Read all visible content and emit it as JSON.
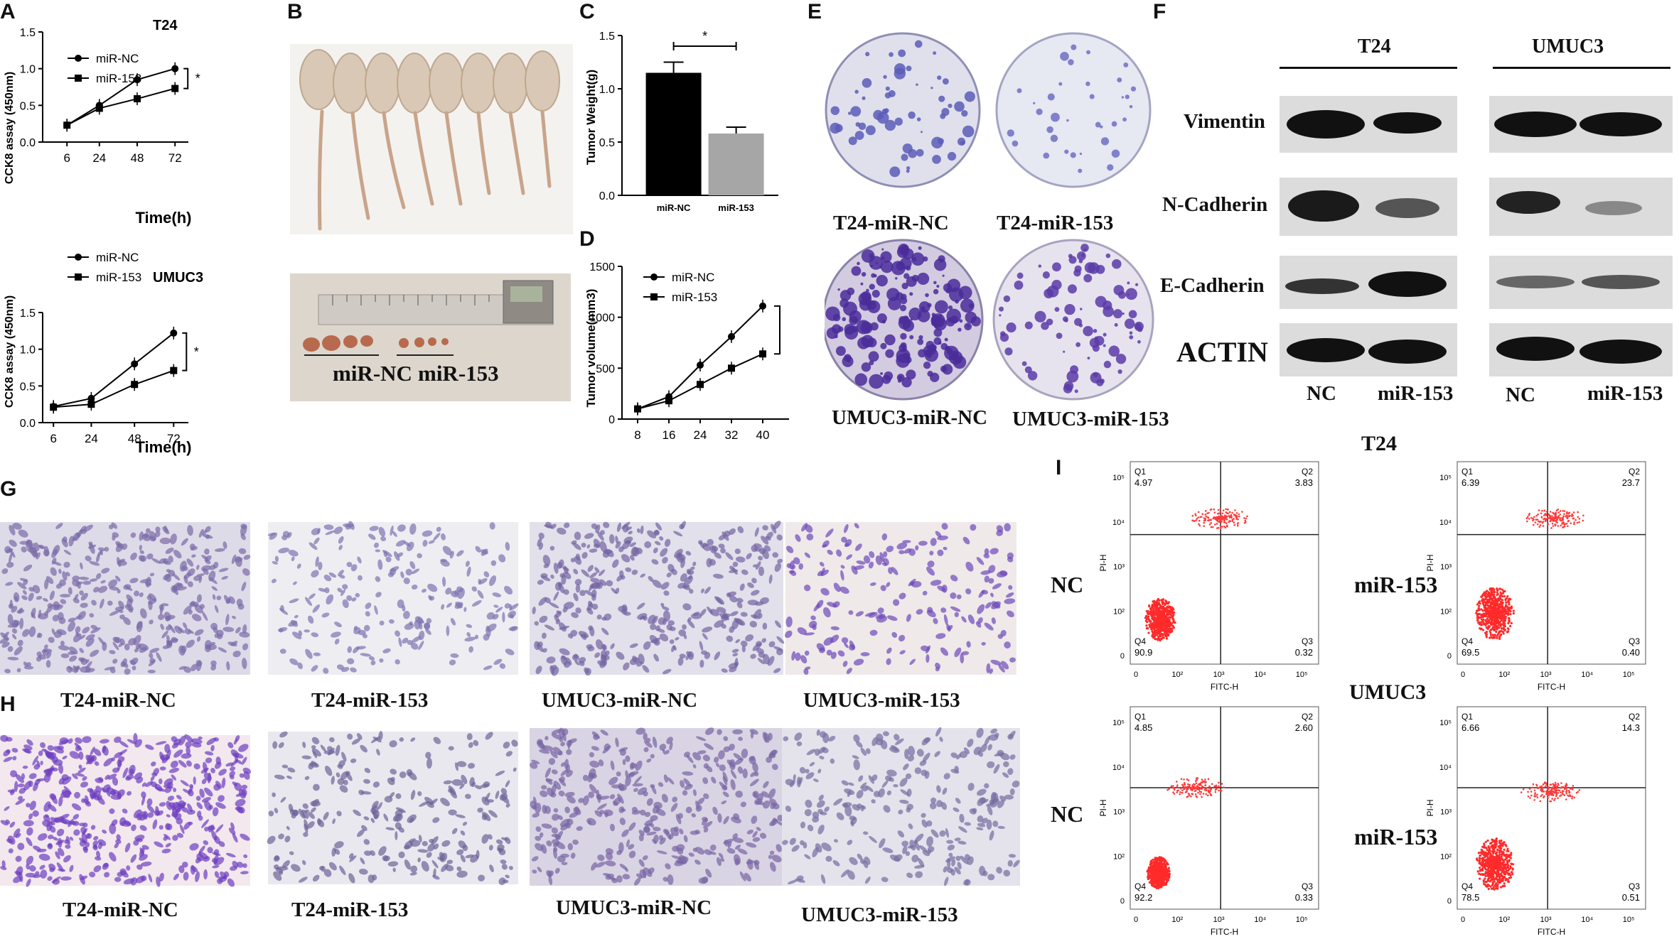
{
  "panels": {
    "A": "A",
    "B": "B",
    "C": "C",
    "D": "D",
    "E": "E",
    "F": "F",
    "G": "G",
    "H": "H",
    "I": "I"
  },
  "chart_data": [
    {
      "id": "A-top",
      "type": "line",
      "title": "T24",
      "xlabel": "Time(h)",
      "ylabel": "CCK8 assay (450nm)",
      "x": [
        "6",
        "24",
        "48",
        "72"
      ],
      "ylim": [
        0.0,
        1.5
      ],
      "yticks": [
        "0.0",
        "0.5",
        "1.0",
        "1.5"
      ],
      "series": [
        {
          "name": "miR-NC",
          "values": [
            0.23,
            0.5,
            0.85,
            1.0
          ]
        },
        {
          "name": "miR-153",
          "values": [
            0.23,
            0.46,
            0.59,
            0.73
          ]
        }
      ],
      "significance": "*"
    },
    {
      "id": "A-bottom",
      "type": "line",
      "title": "UMUC3",
      "xlabel": "Time(h)",
      "ylabel": "CCK8 assay (450nm)",
      "x": [
        "6",
        "24",
        "48",
        "72"
      ],
      "ylim": [
        0.0,
        1.5
      ],
      "yticks": [
        "0.0",
        "0.5",
        "1.0",
        "1.5"
      ],
      "series": [
        {
          "name": "miR-NC",
          "values": [
            0.22,
            0.33,
            0.8,
            1.22
          ]
        },
        {
          "name": "miR-153",
          "values": [
            0.21,
            0.25,
            0.52,
            0.71
          ]
        }
      ],
      "significance": "*"
    },
    {
      "id": "C",
      "type": "bar",
      "ylabel": "Tumor Weight(g)",
      "categories": [
        "miR-NC",
        "miR-153"
      ],
      "values": [
        1.15,
        0.58
      ],
      "errors": [
        0.1,
        0.06
      ],
      "ylim": [
        0.0,
        1.5
      ],
      "yticks": [
        "0.0",
        "0.5",
        "1.0",
        "1.5"
      ],
      "colors": [
        "#000000",
        "#a6a6a6"
      ],
      "significance": "*"
    },
    {
      "id": "D",
      "type": "line",
      "ylabel": "Tumor volume(mm3)",
      "x": [
        "8",
        "16",
        "24",
        "32",
        "40"
      ],
      "ylim": [
        0,
        1500
      ],
      "yticks": [
        "0",
        "500",
        "1000",
        "1500"
      ],
      "series": [
        {
          "name": "miR-NC",
          "values": [
            100,
            220,
            530,
            810,
            1110
          ]
        },
        {
          "name": "miR-153",
          "values": [
            100,
            180,
            340,
            500,
            640
          ]
        }
      ]
    }
  ],
  "panelB": {
    "label_nc": "miR-NC",
    "label_153": "miR-153"
  },
  "panelE": {
    "captions": [
      "T24-miR-NC",
      "T24-miR-153",
      "UMUC3-miR-NC",
      "UMUC3-miR-153"
    ]
  },
  "panelF": {
    "group1": "T24",
    "group2": "UMUC3",
    "rows": [
      "Vimentin",
      "N-Cadherin",
      "E-Cadherin",
      "ACTIN"
    ],
    "lane_nc": "NC",
    "lane_153": "miR-153"
  },
  "panelG": {
    "captions": [
      "T24-miR-NC",
      "T24-miR-153",
      "UMUC3-miR-NC",
      "UMUC3-miR-153"
    ]
  },
  "panelH": {
    "captions": [
      "T24-miR-NC",
      "T24-miR-153",
      "UMUC3-miR-NC",
      "UMUC3-miR-153"
    ]
  },
  "panelI": {
    "row1": "T24",
    "row2": "UMUC3",
    "label_nc": "NC",
    "label_153": "miR-153",
    "xaxis": "FITC-H",
    "yaxis": "PI-H",
    "plots": [
      {
        "q1": "4.97",
        "q2": "3.83",
        "q3": "0.32",
        "q4": "90.9"
      },
      {
        "q1": "6.39",
        "q2": "23.7",
        "q3": "0.40",
        "q4": "69.5"
      },
      {
        "q1": "4.85",
        "q2": "2.60",
        "q3": "0.33",
        "q4": "92.2"
      },
      {
        "q1": "6.66",
        "q2": "14.3",
        "q3": "0.51",
        "q4": "78.5"
      }
    ]
  }
}
